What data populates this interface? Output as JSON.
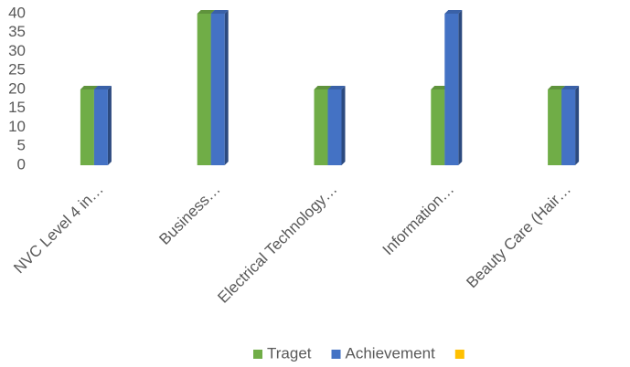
{
  "chart_data": {
    "type": "bar",
    "categories": [
      "NVC Level 4 in…",
      "Business…",
      "Electrical Technology…",
      "Information…",
      "Beauty Care (Hair…"
    ],
    "series": [
      {
        "name": "Traget",
        "color": "#70ad47",
        "values": [
          20,
          40,
          20,
          20,
          20
        ]
      },
      {
        "name": "Achievement",
        "color": "#4472c4",
        "values": [
          20,
          40,
          20,
          40,
          20
        ]
      },
      {
        "color": "#ffc000",
        "values": [
          null,
          null,
          null,
          null,
          null
        ]
      }
    ],
    "ylim": [
      0,
      40
    ],
    "yticks": [
      0,
      5,
      10,
      15,
      20,
      25,
      30,
      35,
      40
    ],
    "grid": false,
    "legend": "bottom"
  }
}
